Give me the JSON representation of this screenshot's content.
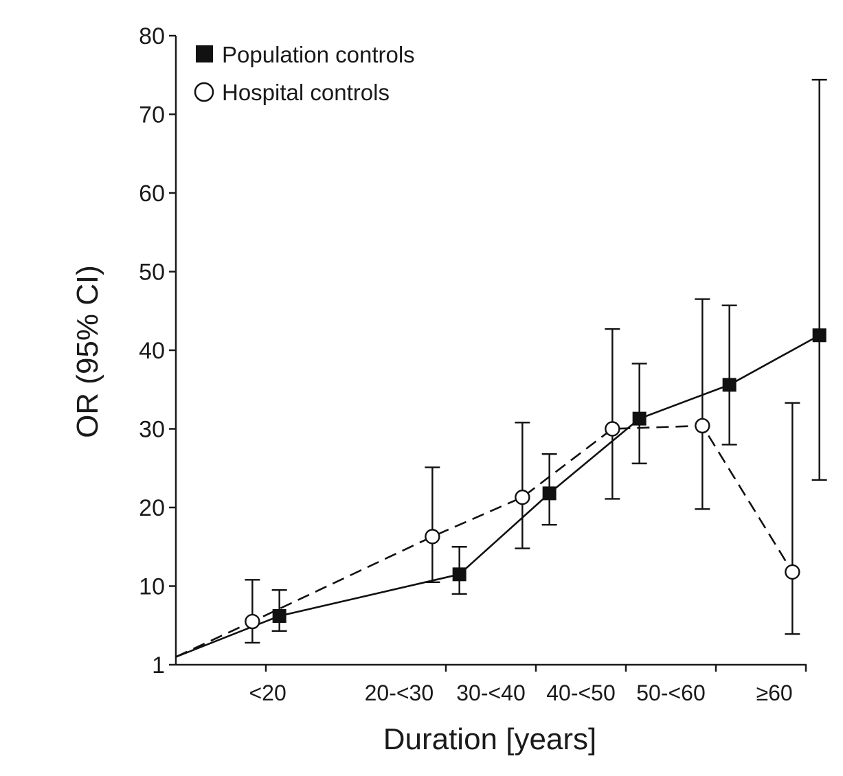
{
  "chart_data": {
    "type": "line",
    "xlabel": "Duration [years]",
    "ylabel": "OR (95% CI)",
    "ylim": [
      0,
      80
    ],
    "yticks": [
      1,
      10,
      20,
      30,
      40,
      50,
      60,
      70,
      80
    ],
    "categories": [
      "<20",
      "20-<30",
      "30-<40",
      "40-<50",
      "50-<60",
      "≥60"
    ],
    "origin": {
      "x": 0,
      "y": 1
    },
    "grid": false,
    "legend_position": "top-left",
    "series": [
      {
        "name": "Population controls",
        "marker": "filled-square",
        "line": "solid",
        "points": [
          {
            "x": 1.15,
            "y": 6.2,
            "lo": 4.3,
            "hi": 9.5
          },
          {
            "x": 3.15,
            "y": 11.5,
            "lo": 9.0,
            "hi": 15.0
          },
          {
            "x": 4.15,
            "y": 21.8,
            "lo": 17.8,
            "hi": 26.8
          },
          {
            "x": 5.15,
            "y": 31.3,
            "lo": 25.6,
            "hi": 38.3
          },
          {
            "x": 6.15,
            "y": 35.6,
            "lo": 28.0,
            "hi": 45.7
          },
          {
            "x": 7.15,
            "y": 41.9,
            "lo": 23.5,
            "hi": 74.4
          }
        ]
      },
      {
        "name": "Hospital controls",
        "marker": "open-circle",
        "line": "dashed",
        "points": [
          {
            "x": 0.85,
            "y": 5.5,
            "lo": 2.8,
            "hi": 10.8
          },
          {
            "x": 2.85,
            "y": 16.3,
            "lo": 10.5,
            "hi": 25.1
          },
          {
            "x": 3.85,
            "y": 21.3,
            "lo": 14.8,
            "hi": 30.8
          },
          {
            "x": 4.85,
            "y": 30.0,
            "lo": 21.1,
            "hi": 42.7
          },
          {
            "x": 5.85,
            "y": 30.4,
            "lo": 19.8,
            "hi": 46.5
          },
          {
            "x": 6.85,
            "y": 11.8,
            "lo": 3.9,
            "hi": 33.3
          }
        ]
      }
    ]
  }
}
